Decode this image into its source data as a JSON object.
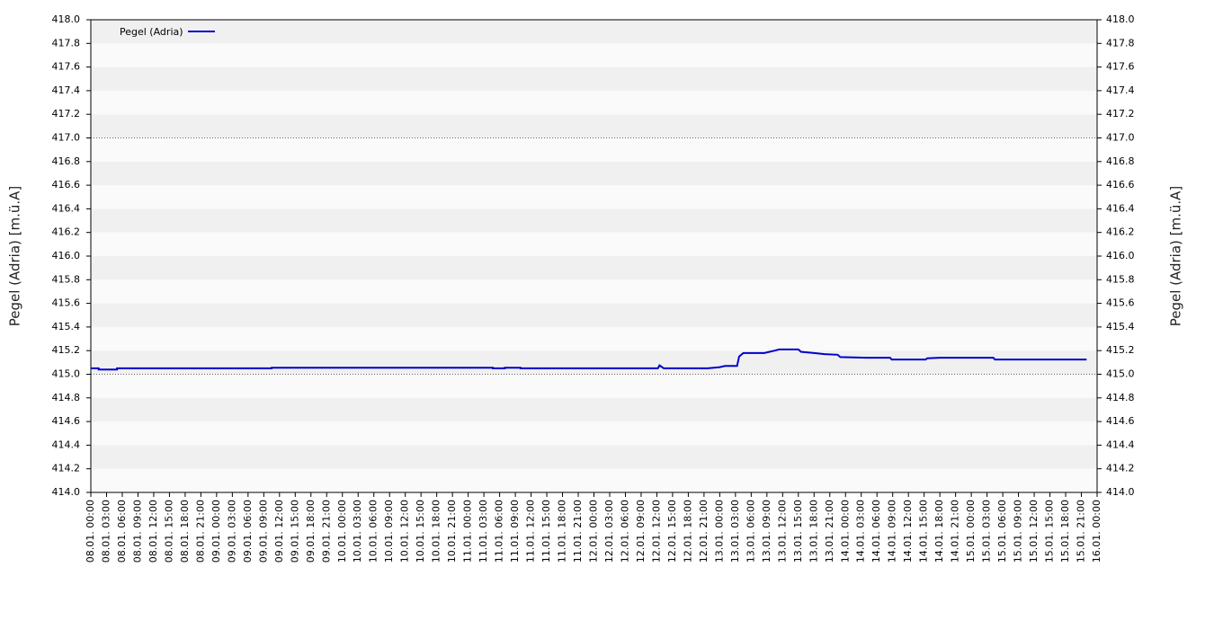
{
  "chart_data": {
    "type": "line",
    "ylabel": "Pegel (Adria) [m.ü.A]",
    "xlim": [
      0,
      192
    ],
    "xticks": [
      {
        "value": 0,
        "label": "08.01. 00:00"
      },
      {
        "value": 3,
        "label": "08.01. 03:00"
      },
      {
        "value": 6,
        "label": "08.01. 06:00"
      },
      {
        "value": 9,
        "label": "08.01. 09:00"
      },
      {
        "value": 12,
        "label": "08.01. 12:00"
      },
      {
        "value": 15,
        "label": "08.01. 15:00"
      },
      {
        "value": 18,
        "label": "08.01. 18:00"
      },
      {
        "value": 21,
        "label": "08.01. 21:00"
      },
      {
        "value": 24,
        "label": "09.01. 00:00"
      },
      {
        "value": 27,
        "label": "09.01. 03:00"
      },
      {
        "value": 30,
        "label": "09.01. 06:00"
      },
      {
        "value": 33,
        "label": "09.01. 09:00"
      },
      {
        "value": 36,
        "label": "09.01. 12:00"
      },
      {
        "value": 39,
        "label": "09.01. 15:00"
      },
      {
        "value": 42,
        "label": "09.01. 18:00"
      },
      {
        "value": 45,
        "label": "09.01. 21:00"
      },
      {
        "value": 48,
        "label": "10.01. 00:00"
      },
      {
        "value": 51,
        "label": "10.01. 03:00"
      },
      {
        "value": 54,
        "label": "10.01. 06:00"
      },
      {
        "value": 57,
        "label": "10.01. 09:00"
      },
      {
        "value": 60,
        "label": "10.01. 12:00"
      },
      {
        "value": 63,
        "label": "10.01. 15:00"
      },
      {
        "value": 66,
        "label": "10.01. 18:00"
      },
      {
        "value": 69,
        "label": "10.01. 21:00"
      },
      {
        "value": 72,
        "label": "11.01. 00:00"
      },
      {
        "value": 75,
        "label": "11.01. 03:00"
      },
      {
        "value": 78,
        "label": "11.01. 06:00"
      },
      {
        "value": 81,
        "label": "11.01. 09:00"
      },
      {
        "value": 84,
        "label": "11.01. 12:00"
      },
      {
        "value": 87,
        "label": "11.01. 15:00"
      },
      {
        "value": 90,
        "label": "11.01. 18:00"
      },
      {
        "value": 93,
        "label": "11.01. 21:00"
      },
      {
        "value": 96,
        "label": "12.01. 00:00"
      },
      {
        "value": 99,
        "label": "12.01. 03:00"
      },
      {
        "value": 102,
        "label": "12.01. 06:00"
      },
      {
        "value": 105,
        "label": "12.01. 09:00"
      },
      {
        "value": 108,
        "label": "12.01. 12:00"
      },
      {
        "value": 111,
        "label": "12.01. 15:00"
      },
      {
        "value": 114,
        "label": "12.01. 18:00"
      },
      {
        "value": 117,
        "label": "12.01. 21:00"
      },
      {
        "value": 120,
        "label": "13.01. 00:00"
      },
      {
        "value": 123,
        "label": "13.01. 03:00"
      },
      {
        "value": 126,
        "label": "13.01. 06:00"
      },
      {
        "value": 129,
        "label": "13.01. 09:00"
      },
      {
        "value": 132,
        "label": "13.01. 12:00"
      },
      {
        "value": 135,
        "label": "13.01. 15:00"
      },
      {
        "value": 138,
        "label": "13.01. 18:00"
      },
      {
        "value": 141,
        "label": "13.01. 21:00"
      },
      {
        "value": 144,
        "label": "14.01. 00:00"
      },
      {
        "value": 147,
        "label": "14.01. 03:00"
      },
      {
        "value": 150,
        "label": "14.01. 06:00"
      },
      {
        "value": 153,
        "label": "14.01. 09:00"
      },
      {
        "value": 156,
        "label": "14.01. 12:00"
      },
      {
        "value": 159,
        "label": "14.01. 15:00"
      },
      {
        "value": 162,
        "label": "14.01. 18:00"
      },
      {
        "value": 165,
        "label": "14.01. 21:00"
      },
      {
        "value": 168,
        "label": "15.01. 00:00"
      },
      {
        "value": 171,
        "label": "15.01. 03:00"
      },
      {
        "value": 174,
        "label": "15.01. 06:00"
      },
      {
        "value": 177,
        "label": "15.01. 09:00"
      },
      {
        "value": 180,
        "label": "15.01. 12:00"
      },
      {
        "value": 183,
        "label": "15.01. 15:00"
      },
      {
        "value": 186,
        "label": "15.01. 18:00"
      },
      {
        "value": 189,
        "label": "15.01. 21:00"
      },
      {
        "value": 192,
        "label": "16.01. 00:00"
      }
    ],
    "ylim": [
      414,
      418
    ],
    "yticks": [
      {
        "value": 414,
        "label": "414.0"
      },
      {
        "value": 414.2,
        "label": "414.2"
      },
      {
        "value": 414.4,
        "label": "414.4"
      },
      {
        "value": 414.6,
        "label": "414.6"
      },
      {
        "value": 414.8,
        "label": "414.8"
      },
      {
        "value": 415,
        "label": "415.0"
      },
      {
        "value": 415.2,
        "label": "415.2"
      },
      {
        "value": 415.4,
        "label": "415.4"
      },
      {
        "value": 415.6,
        "label": "415.6"
      },
      {
        "value": 415.8,
        "label": "415.8"
      },
      {
        "value": 416,
        "label": "416.0"
      },
      {
        "value": 416.2,
        "label": "416.2"
      },
      {
        "value": 416.4,
        "label": "416.4"
      },
      {
        "value": 416.6,
        "label": "416.6"
      },
      {
        "value": 416.8,
        "label": "416.8"
      },
      {
        "value": 417,
        "label": "417.0"
      },
      {
        "value": 417.2,
        "label": "417.2"
      },
      {
        "value": 417.4,
        "label": "417.4"
      },
      {
        "value": 417.6,
        "label": "417.6"
      },
      {
        "value": 417.8,
        "label": "417.8"
      },
      {
        "value": 418,
        "label": "418.0"
      }
    ],
    "reference_lines": [
      415,
      417
    ],
    "legend": "top-left",
    "series": [
      {
        "name": "Pegel (Adria)",
        "color": "#0000cc",
        "x": [
          0,
          1.5,
          1.5,
          5,
          5,
          34.5,
          34.5,
          76.7,
          76.7,
          79,
          79,
          82,
          82,
          108.2,
          108.5,
          109,
          109.3,
          117.7,
          120,
          121,
          123.3,
          123.7,
          124.5,
          128.5,
          129.5,
          130.5,
          131.3,
          135,
          135.5,
          138,
          140,
          142.5,
          143,
          148,
          152.5,
          152.8,
          159.3,
          159.6,
          162,
          172.2,
          172.5,
          190
        ],
        "values": [
          415.05,
          415.05,
          415.04,
          415.04,
          415.05,
          415.05,
          415.055,
          415.055,
          415.05,
          415.05,
          415.055,
          415.055,
          415.05,
          415.05,
          415.075,
          415.06,
          415.05,
          415.05,
          415.06,
          415.07,
          415.07,
          415.15,
          415.18,
          415.18,
          415.19,
          415.2,
          415.21,
          415.21,
          415.19,
          415.18,
          415.17,
          415.165,
          415.145,
          415.14,
          415.14,
          415.125,
          415.125,
          415.135,
          415.14,
          415.14,
          415.125,
          415.125
        ]
      }
    ]
  }
}
